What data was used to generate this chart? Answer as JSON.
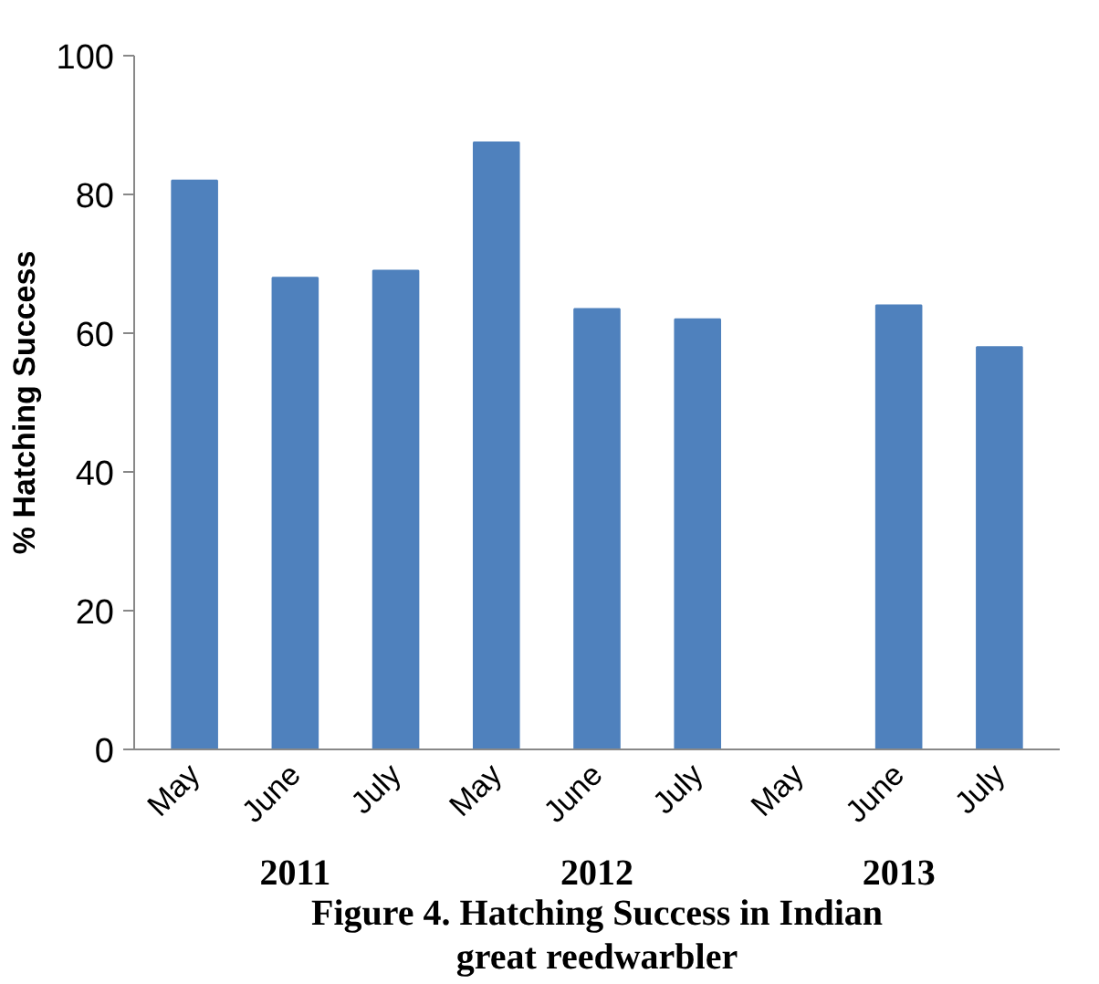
{
  "chart_data": {
    "type": "bar",
    "title": "Figure 4. Hatching Success in Indian great reedwarbler",
    "ylabel": "% Hatching Success",
    "categories": [
      "May",
      "June",
      "July",
      "May",
      "June",
      "July",
      "May",
      "June",
      "July"
    ],
    "values": [
      82,
      68,
      69,
      87.5,
      63.5,
      62,
      null,
      64,
      58
    ],
    "color": "#4f81bd",
    "annotations": [
      "2011",
      "2012",
      "2013"
    ],
    "ylim": [
      0,
      100
    ],
    "yticks": [
      0,
      20,
      40,
      60,
      80,
      100
    ],
    "grid": false
  }
}
